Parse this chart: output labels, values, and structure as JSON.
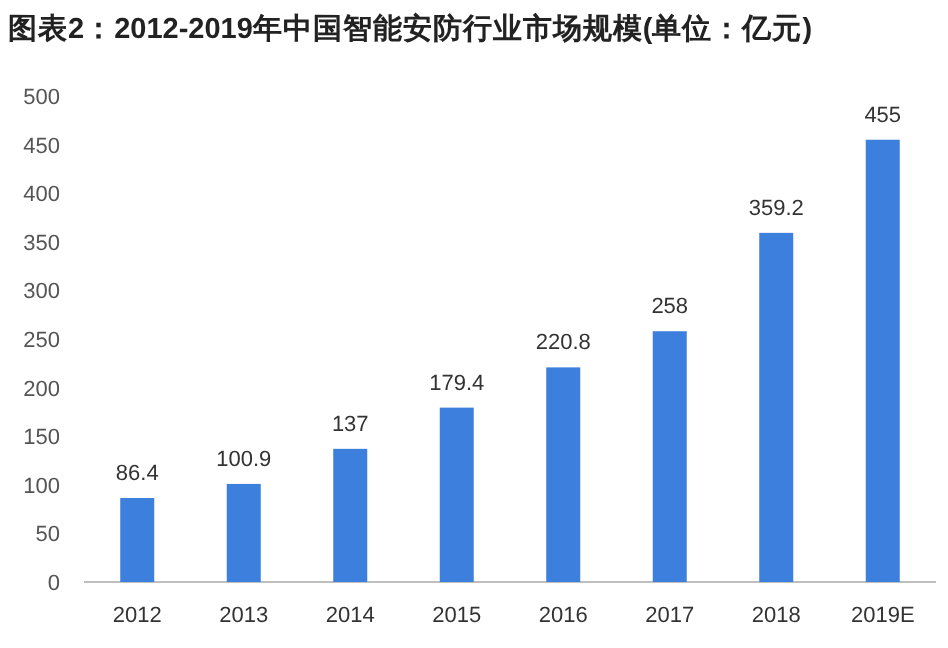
{
  "chart_data": {
    "type": "bar",
    "title": "图表2：2012-2019年中国智能安防行业市场规模(单位：亿元)",
    "categories": [
      "2012",
      "2013",
      "2014",
      "2015",
      "2016",
      "2017",
      "2018",
      "2019E"
    ],
    "values": [
      86.4,
      100.9,
      137,
      179.4,
      220.8,
      258,
      359.2,
      455
    ],
    "color": "#3d7fdc",
    "ylim": [
      0,
      500
    ],
    "yticks": [
      0,
      50,
      100,
      150,
      200,
      250,
      300,
      350,
      400,
      450,
      500
    ],
    "grid": false,
    "data_labels": true
  }
}
